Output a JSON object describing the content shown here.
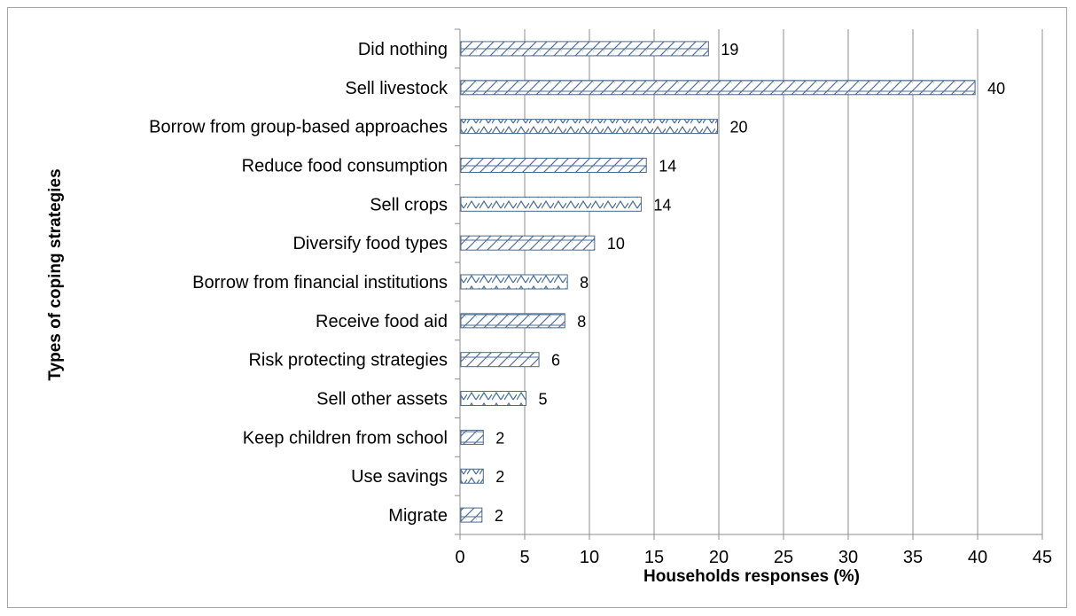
{
  "chart_data": {
    "type": "bar",
    "orientation": "horizontal",
    "title": "",
    "xlabel": "Households responses (%)",
    "ylabel": "Types of coping  strategies",
    "categories": [
      "Did nothing",
      "Sell livestock",
      "Borrow from group-based approaches",
      "Reduce food consumption",
      "Sell crops",
      "Diversify food types",
      "Borrow from financial institutions",
      "Receive food aid",
      "Risk protecting strategies",
      "Sell other assets",
      "Keep children from school",
      "Use savings",
      "Migrate"
    ],
    "values": [
      19.2,
      39.8,
      19.9,
      14.4,
      14.0,
      10.4,
      8.3,
      8.1,
      6.1,
      5.1,
      1.8,
      1.8,
      1.7
    ],
    "data_labels": [
      "19",
      "40",
      "20",
      "14",
      "14",
      "10",
      "8",
      "8",
      "6",
      "5",
      "2",
      "2",
      "2"
    ],
    "patterns": [
      "slash",
      "slash",
      "cross",
      "slash",
      "cross",
      "slash",
      "cross",
      "slash",
      "slash",
      "cross",
      "slash",
      "cross",
      "slash"
    ],
    "xlim": [
      0,
      45
    ],
    "xticks": [
      0,
      5,
      10,
      15,
      20,
      25,
      30,
      35,
      40,
      45
    ],
    "grid": "vertical",
    "legend": "none",
    "colors": {
      "bar_stroke": "#4a6789",
      "pattern": "#4a6e9a",
      "grid": "#8c8c8c",
      "axis": "#8c8c8c"
    }
  }
}
